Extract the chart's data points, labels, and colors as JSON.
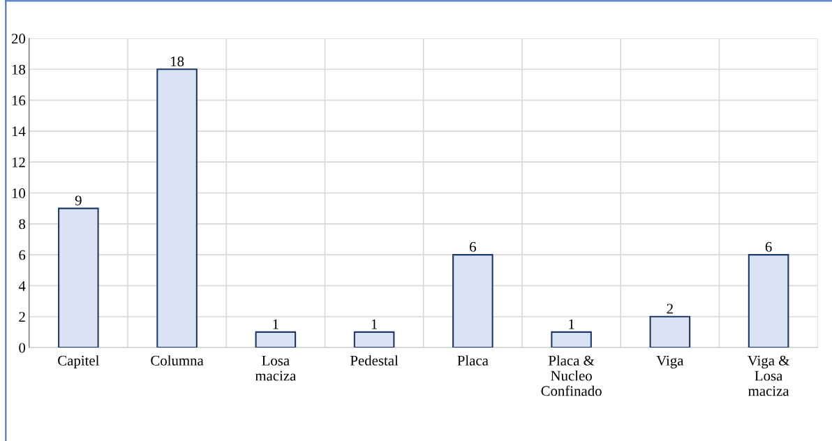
{
  "chart_data": {
    "type": "bar",
    "categories": [
      "Capitel",
      "Columna",
      "Losa\nmaciza",
      "Pedestal",
      "Placa",
      "Placa &\nNucleo\nConfinado",
      "Viga",
      "Viga &\nLosa\nmaciza"
    ],
    "values": [
      9,
      18,
      1,
      1,
      6,
      1,
      2,
      6
    ],
    "color": "#dae3f3",
    "ylim": [
      0,
      20
    ],
    "yticks": [
      0,
      2,
      4,
      6,
      8,
      10,
      12,
      14,
      16,
      18,
      20
    ],
    "grid": true,
    "data_labels": true
  }
}
